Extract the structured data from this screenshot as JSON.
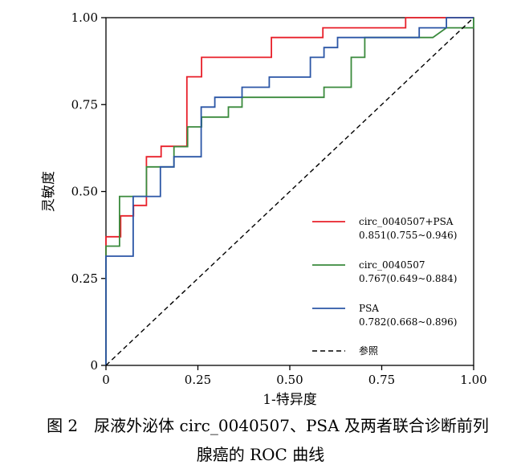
{
  "chart_data": {
    "type": "line",
    "title": "",
    "xlabel": "1-特异度",
    "ylabel": "灵敏度",
    "xlim": [
      0,
      1
    ],
    "ylim": [
      0,
      1
    ],
    "x_ticks": [
      "0",
      "0.25",
      "0.50",
      "0.75",
      "1.00"
    ],
    "y_ticks": [
      "0",
      "0.25",
      "0.50",
      "0.75",
      "1.00"
    ],
    "grid": false,
    "legend_position": "bottom-right",
    "series": [
      {
        "name": "circ_0040507+PSA",
        "auc_label": "0.851(0.755~0.946)",
        "color": "#e8202a",
        "style": "solid",
        "points": [
          [
            0,
            0
          ],
          [
            0,
            0.37
          ],
          [
            0.04,
            0.37
          ],
          [
            0.04,
            0.43
          ],
          [
            0.075,
            0.43
          ],
          [
            0.075,
            0.46
          ],
          [
            0.11,
            0.46
          ],
          [
            0.11,
            0.6
          ],
          [
            0.15,
            0.6
          ],
          [
            0.15,
            0.63
          ],
          [
            0.22,
            0.63
          ],
          [
            0.22,
            0.83
          ],
          [
            0.26,
            0.83
          ],
          [
            0.26,
            0.886
          ],
          [
            0.45,
            0.886
          ],
          [
            0.45,
            0.943
          ],
          [
            0.59,
            0.943
          ],
          [
            0.59,
            0.971
          ],
          [
            0.815,
            0.971
          ],
          [
            0.815,
            1.0
          ],
          [
            1.0,
            1.0
          ]
        ]
      },
      {
        "name": "circ_0040507",
        "auc_label": "0.767(0.649~0.884)",
        "color": "#3a8a3c",
        "style": "solid",
        "points": [
          [
            0,
            0
          ],
          [
            0,
            0.343
          ],
          [
            0.037,
            0.343
          ],
          [
            0.037,
            0.486
          ],
          [
            0.11,
            0.486
          ],
          [
            0.11,
            0.571
          ],
          [
            0.185,
            0.571
          ],
          [
            0.185,
            0.629
          ],
          [
            0.222,
            0.629
          ],
          [
            0.222,
            0.686
          ],
          [
            0.26,
            0.686
          ],
          [
            0.26,
            0.714
          ],
          [
            0.333,
            0.714
          ],
          [
            0.333,
            0.743
          ],
          [
            0.37,
            0.743
          ],
          [
            0.37,
            0.771
          ],
          [
            0.593,
            0.771
          ],
          [
            0.593,
            0.8
          ],
          [
            0.667,
            0.8
          ],
          [
            0.667,
            0.886
          ],
          [
            0.704,
            0.886
          ],
          [
            0.704,
            0.943
          ],
          [
            0.889,
            0.943
          ],
          [
            0.889,
            0.943
          ],
          [
            0.926,
            0.971
          ],
          [
            1.0,
            0.971
          ],
          [
            1.0,
            1.0
          ]
        ]
      },
      {
        "name": "PSA",
        "auc_label": "0.782(0.668~0.896)",
        "color": "#2b56a6",
        "style": "solid",
        "points": [
          [
            0,
            0
          ],
          [
            0,
            0.314
          ],
          [
            0.074,
            0.314
          ],
          [
            0.074,
            0.486
          ],
          [
            0.148,
            0.486
          ],
          [
            0.148,
            0.571
          ],
          [
            0.185,
            0.571
          ],
          [
            0.185,
            0.6
          ],
          [
            0.259,
            0.6
          ],
          [
            0.259,
            0.743
          ],
          [
            0.296,
            0.743
          ],
          [
            0.296,
            0.771
          ],
          [
            0.37,
            0.771
          ],
          [
            0.37,
            0.8
          ],
          [
            0.444,
            0.8
          ],
          [
            0.444,
            0.829
          ],
          [
            0.556,
            0.829
          ],
          [
            0.556,
            0.886
          ],
          [
            0.593,
            0.886
          ],
          [
            0.593,
            0.914
          ],
          [
            0.63,
            0.914
          ],
          [
            0.63,
            0.943
          ],
          [
            0.852,
            0.943
          ],
          [
            0.852,
            0.971
          ],
          [
            0.926,
            0.971
          ],
          [
            0.926,
            1.0
          ],
          [
            1.0,
            1.0
          ]
        ]
      },
      {
        "name": "参照",
        "auc_label": "",
        "color": "#000000",
        "style": "dashed",
        "points": [
          [
            0,
            0
          ],
          [
            1,
            1
          ]
        ]
      }
    ]
  },
  "caption": {
    "line1": "图 2　尿液外泌体 circ_0040507、PSA 及两者联合诊断前列",
    "line2": "腺癌的 ROC 曲线"
  }
}
